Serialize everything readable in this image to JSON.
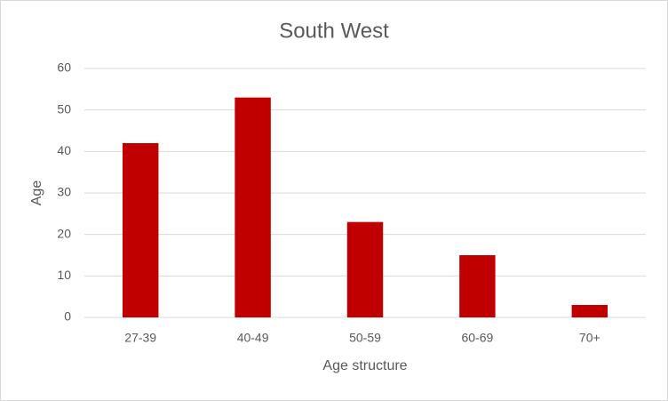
{
  "chart_data": {
    "type": "bar",
    "title": "South West",
    "x_label": "Age structure",
    "y_label": "Age",
    "categories": [
      "27-39",
      "40-49",
      "50-59",
      "60-69",
      "70+"
    ],
    "values": [
      42,
      53,
      23,
      15,
      3
    ],
    "color": "#c00000",
    "ylim": [
      0,
      60
    ],
    "yticks": [
      0,
      10,
      20,
      30,
      40,
      50,
      60
    ],
    "grid": true
  }
}
